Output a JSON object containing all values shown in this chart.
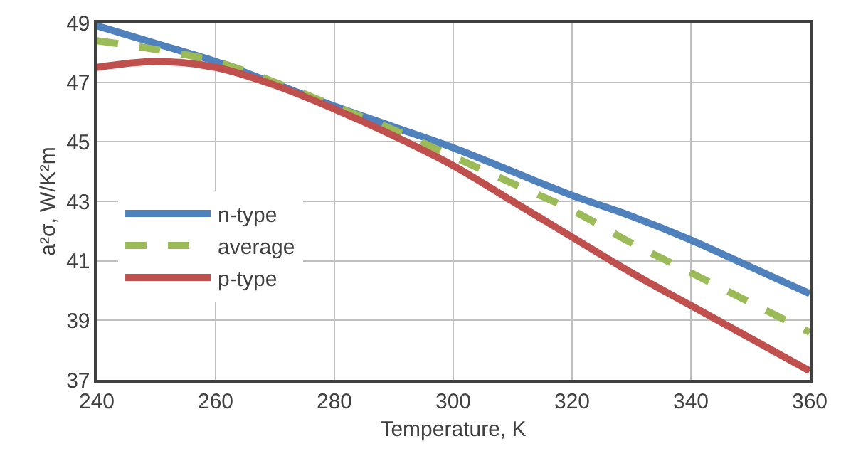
{
  "chart_data": {
    "type": "line",
    "xlabel": "Temperature, K",
    "ylabel": "a²σ, W/K²m",
    "x": [
      240,
      250,
      260,
      270,
      280,
      290,
      300,
      310,
      320,
      330,
      340,
      350,
      360
    ],
    "series": [
      {
        "name": "n-type",
        "color": "#4f81bd",
        "line_style": "solid",
        "values": [
          48.9,
          48.3,
          47.7,
          46.95,
          46.2,
          45.5,
          44.8,
          44.0,
          43.2,
          42.5,
          41.7,
          40.8,
          39.9
        ]
      },
      {
        "name": "average",
        "color": "#9bbb59",
        "line_style": "dashed",
        "values": [
          48.4,
          48.1,
          47.7,
          47.0,
          46.2,
          45.4,
          44.5,
          43.6,
          42.7,
          41.6,
          40.6,
          39.6,
          38.6
        ]
      },
      {
        "name": "p-type",
        "color": "#c0504d",
        "line_style": "solid",
        "values": [
          47.5,
          47.7,
          47.5,
          46.9,
          46.1,
          45.2,
          44.2,
          43.0,
          41.8,
          40.6,
          39.5,
          38.4,
          37.3
        ]
      }
    ],
    "xlim": [
      240,
      360
    ],
    "xticks": [
      240,
      260,
      280,
      300,
      320,
      340,
      360
    ],
    "ylim": [
      37,
      49
    ],
    "yticks": [
      37,
      39,
      41,
      43,
      45,
      47,
      49
    ],
    "grid": true,
    "legend": "left",
    "marker": "none"
  }
}
